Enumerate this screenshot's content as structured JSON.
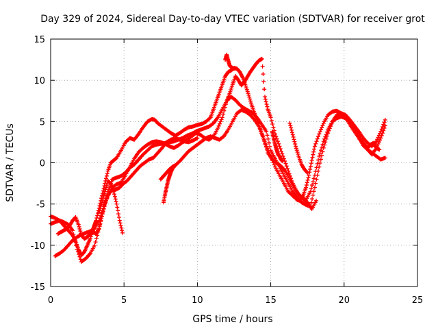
{
  "chart_data": {
    "type": "scatter",
    "title": "Day 329 of 2024, Sidereal Day-to-day VTEC variation (SDTVAR) for receiver grot",
    "xlabel": "GPS time / hours",
    "ylabel": "SDTVAR / TECUs",
    "xlim": [
      0,
      25
    ],
    "ylim": [
      -15,
      15
    ],
    "xticks": [
      0,
      5,
      10,
      15,
      20,
      25
    ],
    "yticks": [
      -15,
      -10,
      -5,
      0,
      5,
      10,
      15
    ],
    "xtick_labels": [
      "0",
      "5",
      "10",
      "15",
      "20",
      "25"
    ],
    "ytick_labels": [
      "-15",
      "-10",
      "-5",
      "0",
      "5",
      "10",
      "15"
    ],
    "grid": true,
    "legend": "none",
    "marker": "plus",
    "color": "#ff0000",
    "series": [
      {
        "x": [
          0.0,
          0.3,
          0.6,
          0.9,
          1.2,
          1.5,
          1.7,
          1.9,
          2.1,
          2.3,
          2.5,
          2.7,
          2.9,
          3.0,
          3.1,
          3.3,
          3.5,
          3.7,
          3.9,
          4.1,
          4.3,
          4.5,
          4.8,
          5.1,
          5.4,
          5.7,
          6.0,
          6.3,
          6.6,
          6.9,
          7.1,
          7.3,
          7.6,
          7.9,
          8.2,
          8.5,
          8.8,
          9.1,
          9.4,
          9.7,
          10.0,
          10.3,
          10.6,
          10.9,
          11.1,
          11.3,
          11.5,
          11.7,
          11.9,
          12.1,
          12.3,
          12.5,
          12.7,
          12.9,
          13.1,
          13.3,
          13.5,
          13.7,
          13.9,
          14.1,
          14.3,
          14.5,
          14.7,
          15.0,
          15.3,
          15.6,
          15.9,
          16.2,
          16.5,
          16.8,
          17.0,
          17.2,
          17.4,
          17.6,
          17.8,
          18.0,
          18.3,
          18.6,
          18.9,
          19.2,
          19.5,
          19.8,
          20.1,
          20.4,
          20.7,
          21.0,
          21.3,
          21.6,
          21.9,
          22.2,
          22.5,
          22.8
        ],
        "y": [
          -6.5,
          -6.7,
          -7.0,
          -7.6,
          -8.2,
          -8.8,
          -9.5,
          -10.5,
          -11.2,
          -10.8,
          -10.0,
          -9.2,
          -8.0,
          -7.5,
          -7.0,
          -5.5,
          -4.0,
          -2.5,
          -1.0,
          0.0,
          0.3,
          0.6,
          1.5,
          2.5,
          3.0,
          2.8,
          3.5,
          4.3,
          5.0,
          5.3,
          5.2,
          4.8,
          4.4,
          4.0,
          3.6,
          3.3,
          3.6,
          4.0,
          4.3,
          4.4,
          4.6,
          4.7,
          5.0,
          5.5,
          6.5,
          7.5,
          8.5,
          9.5,
          10.5,
          11.0,
          11.2,
          11.5,
          11.4,
          11.0,
          10.3,
          9.3,
          8.2,
          7.0,
          6.0,
          5.0,
          4.0,
          3.0,
          2.0,
          0.8,
          -0.5,
          -1.5,
          -2.5,
          -3.5,
          -4.0,
          -4.5,
          -4.6,
          -4.0,
          -3.0,
          -1.5,
          0.3,
          2.0,
          3.5,
          4.8,
          5.8,
          6.2,
          6.3,
          6.0,
          5.5,
          4.6,
          3.8,
          3.0,
          2.2,
          1.6,
          1.2,
          0.8,
          0.4,
          0.6
        ]
      },
      {
        "x": [
          0.3,
          0.6,
          0.9,
          1.2,
          1.5,
          1.8,
          2.1,
          2.4,
          2.7,
          3.0,
          3.3,
          3.6,
          3.9,
          4.2,
          4.5,
          4.8,
          5.1,
          5.4,
          5.7,
          6.0,
          6.3,
          6.6,
          6.9,
          7.2,
          7.5,
          7.8,
          8.1,
          8.4,
          8.7,
          9.0,
          9.3,
          9.6,
          9.9,
          10.2,
          10.5,
          10.8,
          11.1,
          11.4,
          11.7,
          12.0,
          12.2,
          12.4,
          12.6,
          12.8,
          13.0,
          13.2,
          13.4,
          13.6,
          13.8,
          14.0,
          14.2,
          14.4,
          14.6,
          14.8,
          15.0,
          15.3,
          15.6,
          15.9,
          16.2,
          16.5,
          16.8,
          17.1,
          17.4,
          17.7,
          18.0,
          18.3,
          18.6,
          18.9,
          19.2,
          19.5,
          19.8,
          20.1,
          20.4,
          20.7,
          21.0,
          21.3,
          21.6,
          21.9,
          22.2,
          22.5,
          22.8
        ],
        "y": [
          -11.3,
          -11.0,
          -10.6,
          -10.0,
          -9.4,
          -9.0,
          -8.7,
          -8.5,
          -8.3,
          -8.0,
          -7.0,
          -5.5,
          -4.0,
          -3.0,
          -2.6,
          -2.4,
          -1.5,
          -0.5,
          0.5,
          1.3,
          1.8,
          2.2,
          2.5,
          2.6,
          2.5,
          2.3,
          2.0,
          1.8,
          2.1,
          2.5,
          2.8,
          3.2,
          3.6,
          3.4,
          3.0,
          2.8,
          3.2,
          4.2,
          5.5,
          7.5,
          8.4,
          9.5,
          10.5,
          10.0,
          9.4,
          9.8,
          10.4,
          11.0,
          11.5,
          12.0,
          12.4,
          12.6,
          8.0,
          6.5,
          5.5,
          3.5,
          2.0,
          0.5,
          -1.0,
          -2.5,
          -3.6,
          -4.2,
          -4.5,
          -3.5,
          -1.5,
          0.8,
          2.6,
          4.0,
          5.0,
          5.4,
          5.6,
          5.4,
          4.9,
          4.2,
          3.2,
          2.1,
          1.6,
          1.0,
          1.8,
          3.0,
          4.5
        ]
      },
      {
        "x": [
          0.0,
          0.3,
          0.6,
          0.9,
          1.2,
          1.5,
          1.8,
          2.1,
          2.4,
          2.7,
          3.0,
          3.3,
          3.6,
          3.9,
          4.2,
          4.5,
          4.8,
          5.1,
          5.4,
          5.7,
          6.0,
          6.3,
          6.6,
          6.9,
          7.2,
          7.5,
          7.8,
          8.1,
          8.4,
          8.7,
          9.0,
          9.3,
          9.6,
          9.9,
          10.2,
          10.5,
          10.8,
          11.1,
          11.4,
          11.7,
          12.0,
          12.3,
          12.6,
          12.9,
          13.2,
          13.5,
          13.8,
          14.1,
          14.4,
          14.7,
          15.0,
          15.3,
          15.6,
          15.9,
          16.2,
          16.5,
          16.8,
          17.1,
          17.4,
          17.7,
          18.0,
          18.3,
          18.6,
          18.9,
          19.2,
          19.5,
          19.8,
          20.1,
          20.4,
          20.7,
          21.0,
          21.3,
          21.6,
          21.9,
          22.2,
          22.5,
          22.8
        ],
        "y": [
          -7.4,
          -7.2,
          -7.0,
          -7.2,
          -7.5,
          -8.2,
          -10.5,
          -12.0,
          -11.6,
          -11.0,
          -10.0,
          -8.0,
          -5.5,
          -3.5,
          -2.0,
          -1.8,
          -1.6,
          -1.2,
          -0.6,
          -0.2,
          0.4,
          1.0,
          1.5,
          2.0,
          2.2,
          2.3,
          2.4,
          2.5,
          2.6,
          2.8,
          3.0,
          3.3,
          3.5,
          3.8,
          4.0,
          4.2,
          4.4,
          4.8,
          5.5,
          6.5,
          7.5,
          8.0,
          7.6,
          7.0,
          6.6,
          6.3,
          6.0,
          5.4,
          4.6,
          3.8,
          1.5,
          0.5,
          -0.5,
          -1.5,
          -2.5,
          -3.5,
          -4.2,
          -4.8,
          -5.1,
          -5.3,
          -3.0,
          -0.5,
          1.8,
          3.6,
          5.0,
          5.8,
          6.0,
          5.8,
          5.2,
          4.5,
          3.8,
          3.0,
          2.4,
          2.0,
          2.6,
          3.8,
          5.2
        ]
      },
      {
        "x": [
          0.5,
          0.7,
          0.9,
          1.1,
          1.3,
          1.5,
          1.7,
          1.9,
          2.1,
          2.3,
          2.5,
          2.7,
          2.9,
          3.1,
          3.3,
          3.5,
          3.7,
          3.9,
          4.1,
          4.3,
          4.5,
          4.7,
          4.9,
          5.2,
          5.5,
          5.8,
          6.1,
          6.4,
          6.7,
          7.0,
          7.3,
          7.6,
          7.9,
          8.2,
          8.5,
          8.8,
          9.1,
          9.4,
          9.7,
          10.0
        ],
        "y": [
          -8.6,
          -8.4,
          -8.2,
          -8.0,
          -7.6,
          -7.0,
          -6.6,
          -7.5,
          -8.8,
          -9.2,
          -9.0,
          -8.6,
          -8.4,
          -8.6,
          -8.0,
          -6.5,
          -5.0,
          -4.0,
          -3.4,
          -3.3,
          -3.2,
          -3.0,
          -2.6,
          -2.2,
          -1.6,
          -1.0,
          -0.4,
          0.0,
          0.4,
          0.6,
          1.2,
          1.8,
          2.5,
          2.8,
          3.0,
          2.8,
          2.6,
          2.5,
          2.7,
          3.0
        ]
      },
      {
        "x": [
          7.5,
          7.7,
          7.9,
          8.1,
          8.3,
          8.5,
          8.8,
          9.1,
          9.4,
          9.7,
          10.0,
          10.3,
          10.6,
          10.9,
          11.2,
          11.5,
          11.8,
          12.1,
          12.4,
          12.7,
          13.0,
          13.3,
          13.6,
          13.9,
          14.2,
          14.5,
          14.8,
          15.1,
          15.4,
          15.7,
          16.0,
          16.3,
          16.6,
          16.9,
          17.2,
          17.5,
          17.8,
          18.1
        ],
        "y": [
          -2.0,
          -1.6,
          -1.2,
          -0.8,
          -0.5,
          -0.3,
          0.2,
          0.8,
          1.4,
          1.8,
          2.2,
          2.6,
          3.0,
          3.2,
          3.0,
          2.8,
          3.2,
          4.0,
          5.0,
          6.0,
          6.4,
          6.2,
          5.8,
          5.2,
          4.4,
          3.0,
          1.2,
          0.4,
          0.0,
          -0.4,
          -1.0,
          -2.0,
          -3.0,
          -3.8,
          -4.4,
          -4.8,
          -5.6,
          -4.6
        ]
      },
      {
        "x": [
          3.3,
          3.5,
          3.7,
          3.9,
          4.1,
          4.3,
          4.5,
          4.7,
          4.9
        ],
        "y": [
          -6.0,
          -4.8,
          -3.5,
          -2.2,
          -2.5,
          -3.5,
          -5.0,
          -7.0,
          -8.5
        ]
      },
      {
        "x": [
          7.7,
          7.8,
          7.9,
          8.0,
          8.1,
          8.2,
          8.3,
          8.5
        ],
        "y": [
          -4.8,
          -3.8,
          -3.0,
          -2.2,
          -1.6,
          -1.1,
          -0.7,
          -0.3
        ]
      },
      {
        "x": [
          11.9,
          12.0,
          12.1,
          12.2,
          12.3,
          12.5
        ],
        "y": [
          12.5,
          13.1,
          12.4,
          11.8,
          11.6,
          11.4
        ]
      },
      {
        "x": [
          15.1,
          15.2,
          15.3,
          15.4,
          15.5,
          15.6,
          15.7,
          15.8
        ],
        "y": [
          3.8,
          3.0,
          2.2,
          1.6,
          1.0,
          0.8,
          0.4,
          0.2
        ]
      },
      {
        "x": [
          16.3,
          16.5,
          16.7,
          16.9,
          17.1,
          17.3,
          17.5
        ],
        "y": [
          4.8,
          3.4,
          2.0,
          0.8,
          -0.2,
          -0.8,
          -1.2
        ]
      },
      {
        "x": [
          20.8,
          21.0,
          21.2,
          21.4,
          21.6,
          21.8,
          22.0,
          22.2,
          22.4
        ],
        "y": [
          3.8,
          3.2,
          2.6,
          2.2,
          1.8,
          2.2,
          2.4,
          1.8,
          1.6
        ]
      }
    ]
  }
}
